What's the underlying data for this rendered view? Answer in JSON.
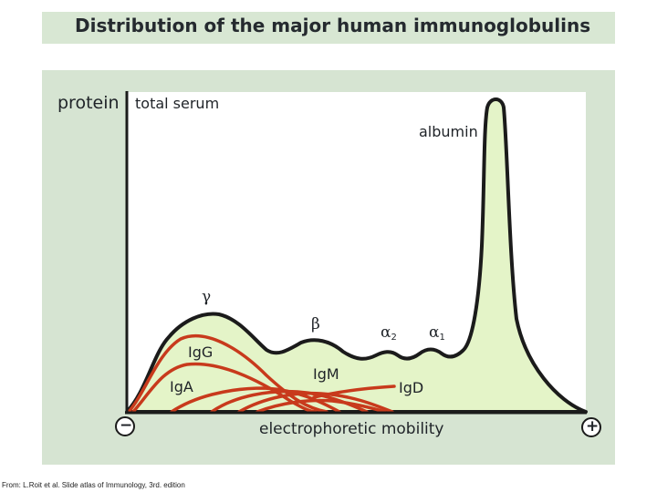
{
  "title": "Distribution of the major human immunoglobulins",
  "axes": {
    "y_label": "protein",
    "x_label": "electrophoretic mobility",
    "minus": "−",
    "plus": "+"
  },
  "curves": {
    "total_serum": "total serum",
    "albumin": "albumin",
    "gamma": "γ",
    "beta": "β",
    "alpha2": "α",
    "alpha2_sub": "2",
    "alpha1": "α",
    "alpha1_sub": "1",
    "igg": "IgG",
    "iga": "IgA",
    "igm": "IgM",
    "igd": "IgD"
  },
  "colors": {
    "fill": "#e4f4c8",
    "outline": "#1b1b1b",
    "immunoglobulin": "#c83a1c",
    "background": "#d6e4d2"
  },
  "credit": "From: L.Roit et al. Slide atlas of Immunology, 3rd. edition"
}
